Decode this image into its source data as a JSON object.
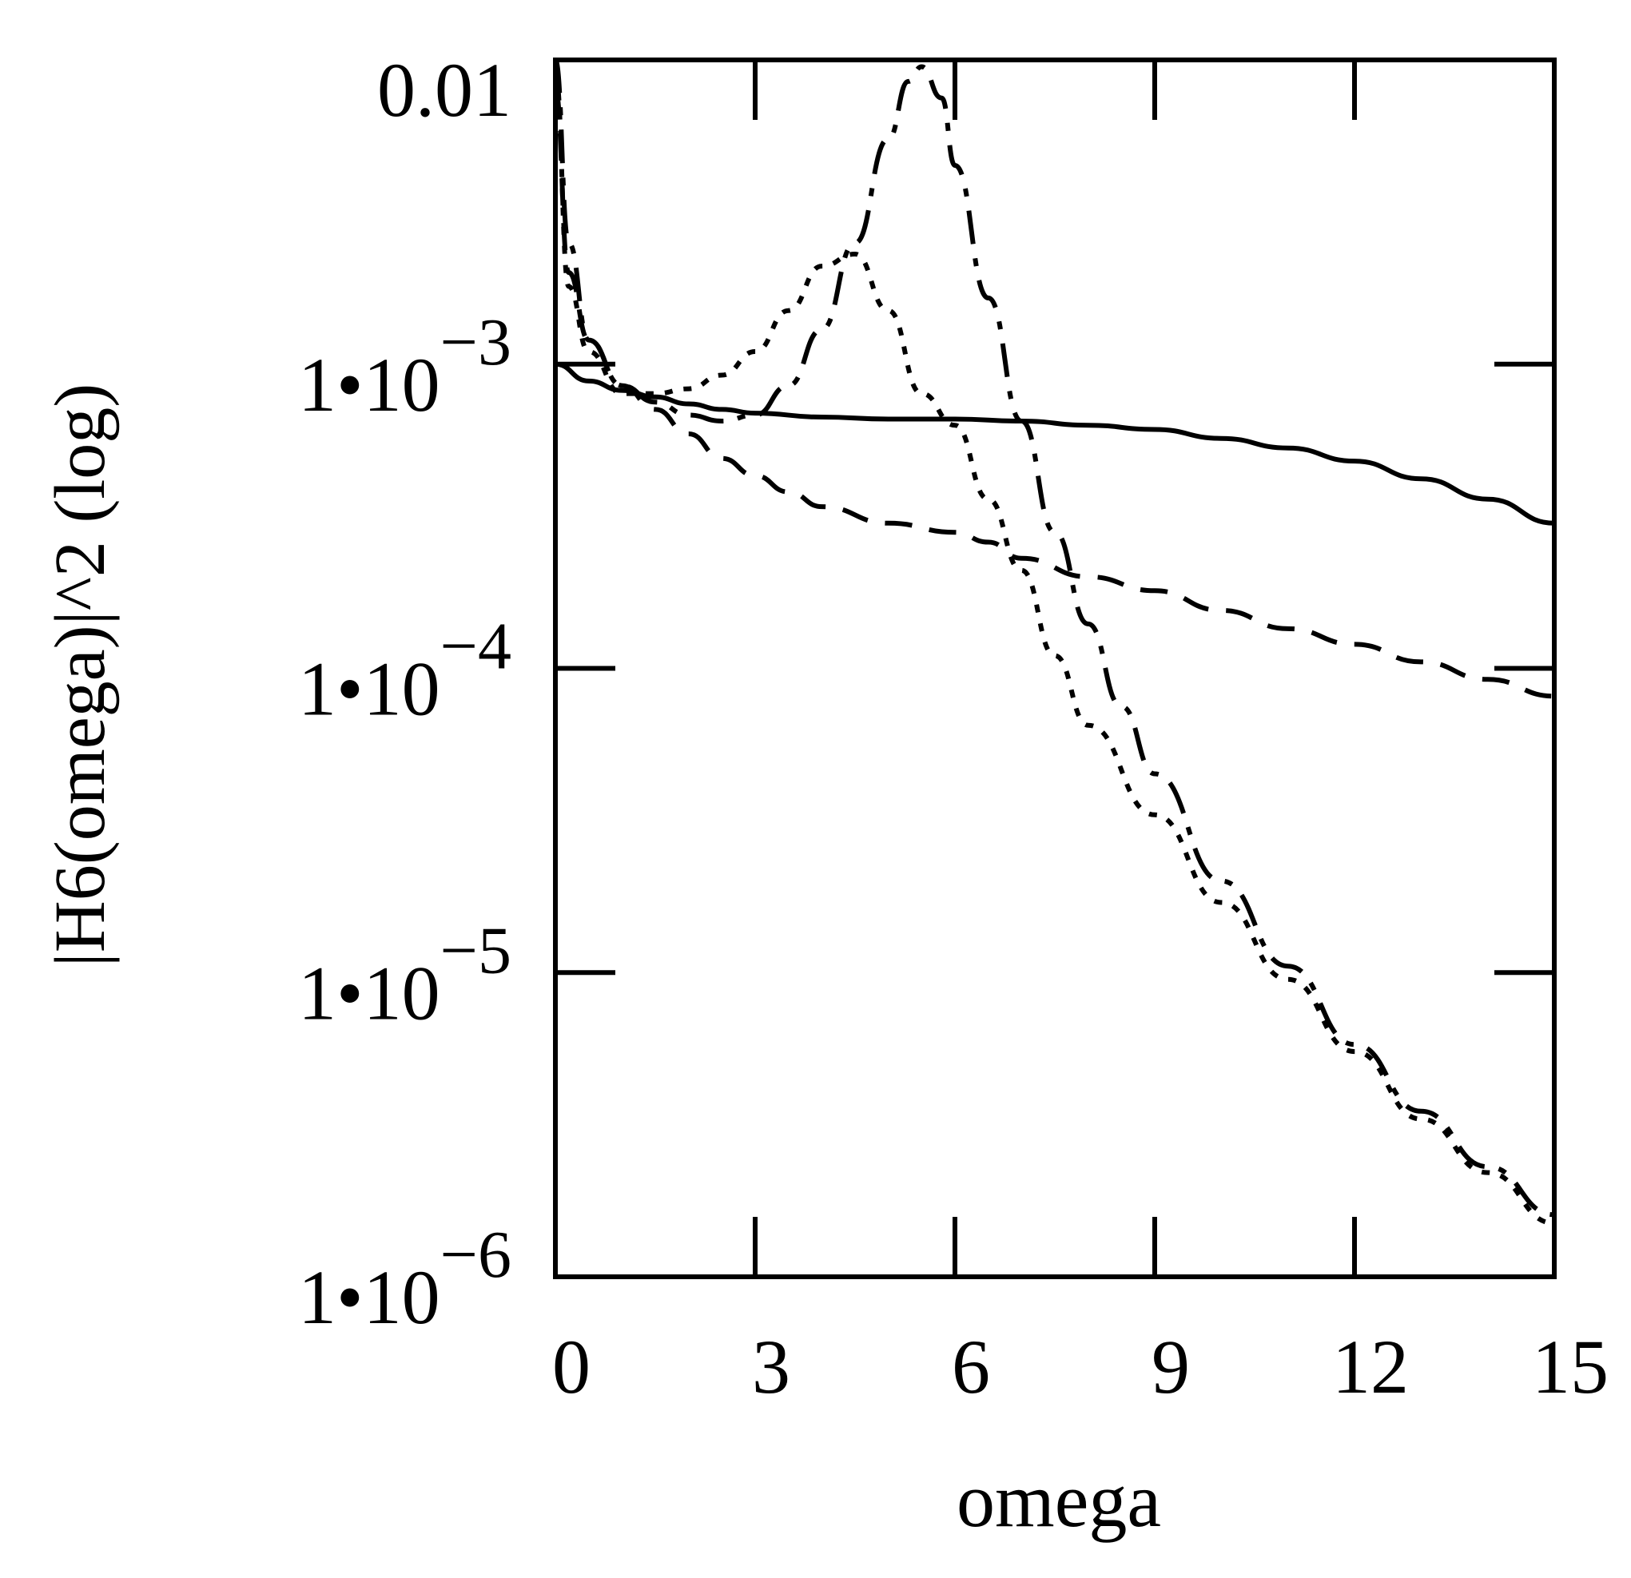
{
  "chart_data": {
    "type": "line",
    "title": "",
    "xlabel": "omega",
    "ylabel": "|H6(omega)|^2 (log)",
    "xlim": [
      0,
      15
    ],
    "ylim": [
      1e-06,
      0.01
    ],
    "yscale": "log",
    "grid": false,
    "x_ticks": [
      {
        "value": 0,
        "label": "0"
      },
      {
        "value": 3,
        "label": "3"
      },
      {
        "value": 6,
        "label": "6"
      },
      {
        "value": 9,
        "label": "9"
      },
      {
        "value": 12,
        "label": "12"
      },
      {
        "value": 15,
        "label": "15"
      }
    ],
    "y_ticks": [
      {
        "value": 0.01,
        "label": "0.01",
        "base": "",
        "exponent": ""
      },
      {
        "value": 0.001,
        "label": "",
        "base": "1•10",
        "exponent": "−3"
      },
      {
        "value": 0.0001,
        "label": "",
        "base": "1•10",
        "exponent": "−4"
      },
      {
        "value": 1e-05,
        "label": "",
        "base": "1•10",
        "exponent": "−5"
      },
      {
        "value": 1e-06,
        "label": "",
        "base": "1•10",
        "exponent": "−6"
      }
    ],
    "series": [
      {
        "name": "solid",
        "style": "solid",
        "x": [
          0,
          0.5,
          1.0,
          1.5,
          2.0,
          2.5,
          3.0,
          4.0,
          5.0,
          6.0,
          7.0,
          8.0,
          9.0,
          10.0,
          11.0,
          12.0,
          13.0,
          14.0,
          15.0
        ],
        "y": [
          0.001,
          0.00088,
          0.00082,
          0.00078,
          0.00074,
          0.00071,
          0.00069,
          0.00067,
          0.00066,
          0.00066,
          0.00065,
          0.00063,
          0.00061,
          0.00057,
          0.00053,
          0.00048,
          0.00042,
          0.00036,
          0.0003
        ]
      },
      {
        "name": "dotted",
        "style": "dotted",
        "x": [
          0,
          0.2,
          0.5,
          1.0,
          1.5,
          2.0,
          2.5,
          3.0,
          3.5,
          4.0,
          4.5,
          5.0,
          5.5,
          6.0,
          6.5,
          7.0,
          7.5,
          8.0,
          9.0,
          10.0,
          11.0,
          12.0,
          13.0,
          14.0,
          15.0
        ],
        "y": [
          0.009,
          0.0018,
          0.0011,
          0.0008,
          0.0008,
          0.00083,
          0.00092,
          0.0011,
          0.0015,
          0.0021,
          0.0023,
          0.0015,
          0.0008,
          0.00063,
          0.00036,
          0.00021,
          0.00011,
          6.5e-05,
          3.3e-05,
          1.7e-05,
          9.5e-06,
          5.5e-06,
          3.3e-06,
          2.2e-06,
          1.5e-06
        ]
      },
      {
        "name": "dashed",
        "style": "dashed",
        "x": [
          0,
          0.2,
          0.5,
          1.0,
          1.5,
          2.0,
          2.5,
          3.0,
          3.5,
          4.0,
          5.0,
          6.0,
          6.5,
          7.0,
          8.0,
          9.0,
          10.0,
          11.0,
          12.0,
          13.0,
          14.0,
          15.0
        ],
        "y": [
          0.008,
          0.002,
          0.0012,
          0.00085,
          0.00071,
          0.00059,
          0.00049,
          0.00043,
          0.00038,
          0.00034,
          0.0003,
          0.00028,
          0.00026,
          0.00023,
          0.0002,
          0.00018,
          0.000155,
          0.000135,
          0.00012,
          0.000105,
          9.2e-05,
          8.1e-05
        ]
      },
      {
        "name": "dash-dot",
        "style": "dashdot",
        "x": [
          0,
          0.2,
          0.5,
          1.0,
          1.5,
          2.0,
          2.5,
          3.0,
          3.5,
          4.0,
          4.5,
          5.0,
          5.3,
          5.5,
          5.8,
          6.0,
          6.5,
          7.0,
          7.5,
          8.0,
          8.5,
          9.0,
          10.0,
          11.0,
          12.0,
          13.0,
          14.0,
          15.0
        ],
        "y": [
          0.01,
          0.0025,
          0.0012,
          0.00085,
          0.00075,
          0.00068,
          0.00065,
          0.00068,
          0.00085,
          0.0013,
          0.0025,
          0.0055,
          0.0085,
          0.0095,
          0.0075,
          0.0045,
          0.00165,
          0.00065,
          0.00028,
          0.00014,
          7.5e-05,
          4.5e-05,
          2e-05,
          1.05e-05,
          5.8e-06,
          3.5e-06,
          2.3e-06,
          1.6e-06
        ]
      }
    ]
  }
}
